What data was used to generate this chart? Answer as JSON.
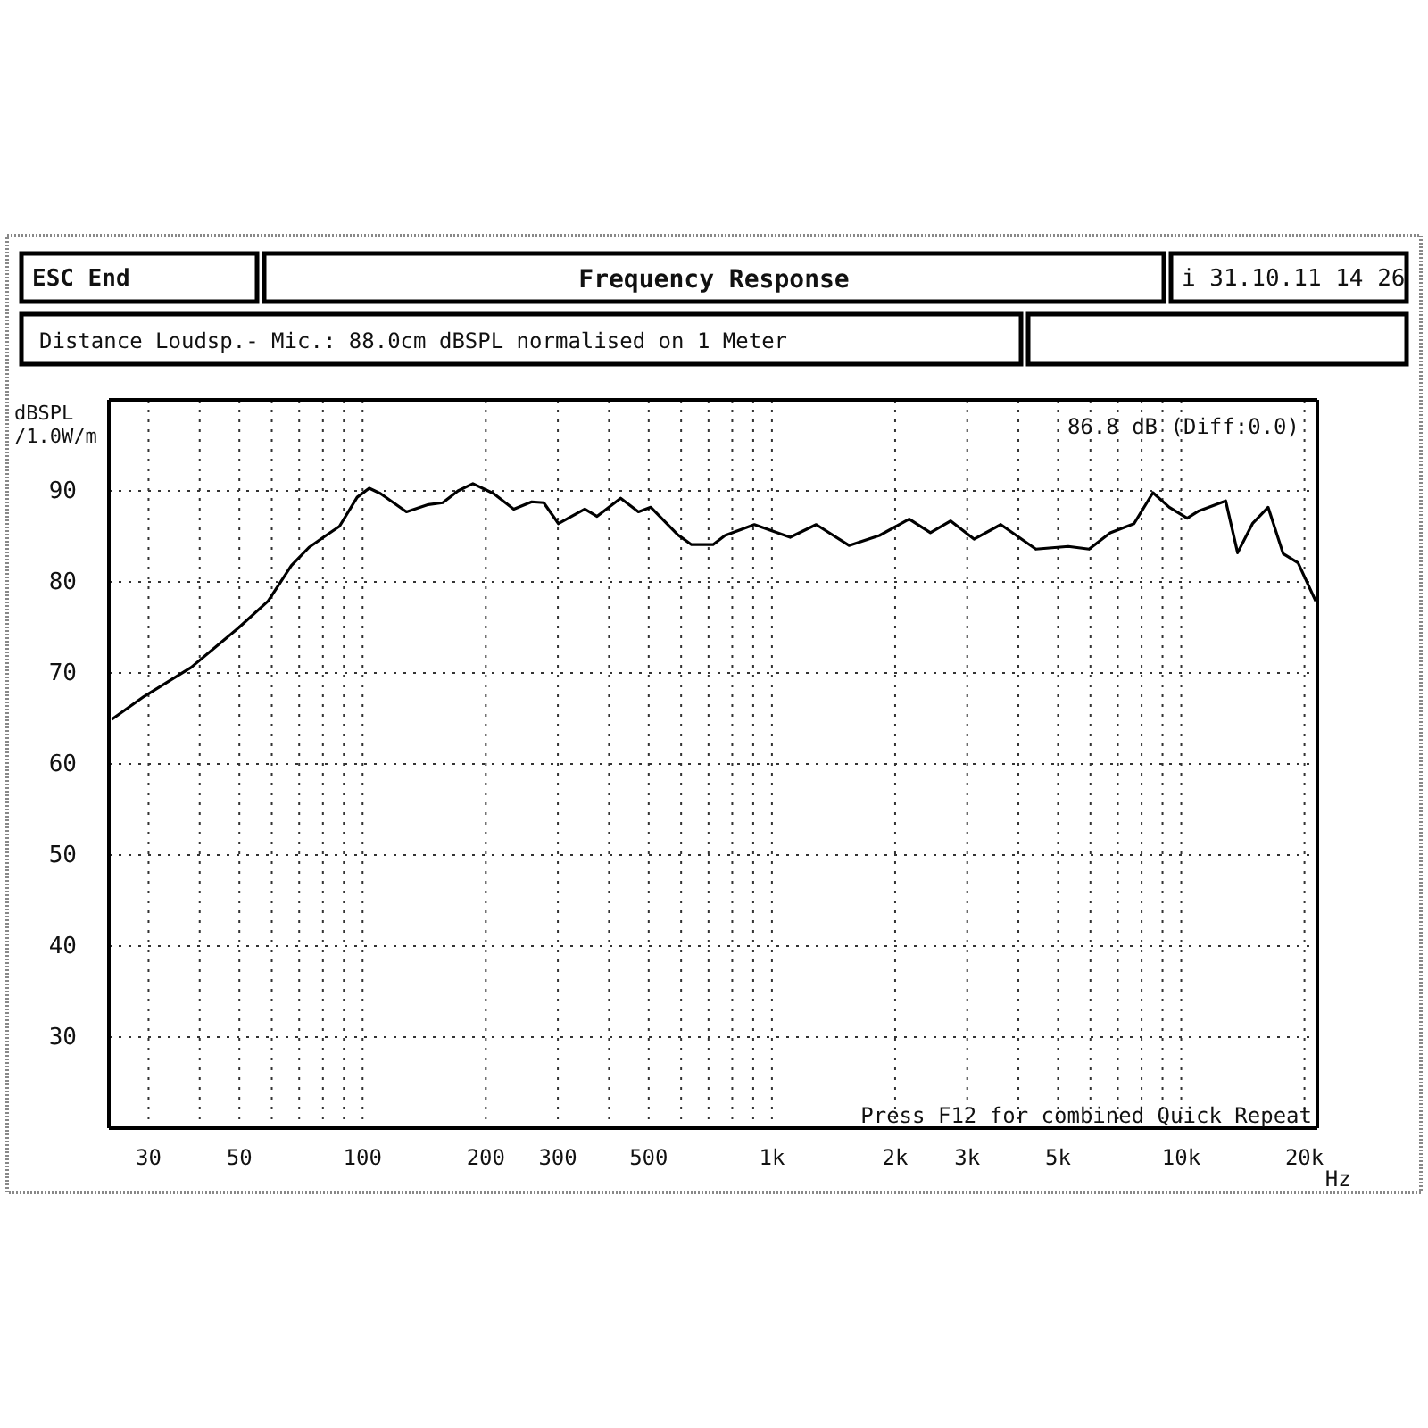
{
  "chart_data": {
    "type": "line",
    "title": "Frequency Response",
    "subtitle": "Distance Loudsp.- Mic.: 88.0cm dBSPL normalised on 1 Meter",
    "ylabel": "dBSPL\n/1.0W/m",
    "annotations": [
      "ESC End",
      "i 31.10.11 14 26",
      "86.8 dB (Diff:0.0)",
      "Press F12 for combined Quick Repeat"
    ],
    "log": "x",
    "grid": true,
    "color": "#000000",
    "xlim": [
      24,
      21500
    ],
    "ylim": [
      20,
      100
    ],
    "xticks": [
      30,
      {
        "value": 40,
        "label": null
      },
      50,
      {
        "value": 60,
        "label": null
      },
      {
        "value": 70,
        "label": null
      },
      {
        "value": 80,
        "label": null
      },
      {
        "value": 90,
        "label": null
      },
      100,
      200,
      300,
      {
        "value": 400,
        "label": null
      },
      500,
      {
        "value": 600,
        "label": null
      },
      {
        "value": 700,
        "label": null
      },
      {
        "value": 800,
        "label": null
      },
      {
        "value": 900,
        "label": null
      },
      {
        "value": 1000,
        "label": "1k"
      },
      {
        "value": 2000,
        "label": "2k"
      },
      {
        "value": 3000,
        "label": "3k"
      },
      {
        "value": 4000,
        "label": null
      },
      {
        "value": 5000,
        "label": "5k"
      },
      {
        "value": 6000,
        "label": null
      },
      {
        "value": 7000,
        "label": null
      },
      {
        "value": 8000,
        "label": null
      },
      {
        "value": 9000,
        "label": null
      },
      {
        "value": 10000,
        "label": "10k"
      },
      {
        "value": 20000,
        "label": "20k"
      }
    ],
    "xlabel": "Hz",
    "yticks": [
      30,
      40,
      50,
      60,
      70,
      80,
      90
    ],
    "x": [
      24.4,
      29.2,
      38.1,
      49.6,
      58.8,
      67,
      74,
      80.8,
      87.8,
      97,
      103.8,
      110.6,
      128,
      144.8,
      157,
      171,
      186,
      209,
      234,
      259,
      277,
      301,
      349,
      374,
      427,
      472,
      506,
      588,
      636,
      718,
      768,
      906,
      1108,
      1283,
      1543,
      1831,
      2165,
      2439,
      2734,
      3117,
      3623,
      4413,
      5297,
      5956,
      6707,
      7667,
      8528,
      9350,
      10340,
      11040,
      12840,
      13730,
      14930,
      16300,
      17740,
      19290,
      21300
    ],
    "values": [
      64.9,
      67.4,
      70.6,
      74.9,
      77.9,
      81.8,
      83.8,
      85,
      86.1,
      89.3,
      90.3,
      89.7,
      87.7,
      88.5,
      88.7,
      90,
      90.8,
      89.7,
      88,
      88.8,
      88.7,
      86.4,
      88,
      87.2,
      89.2,
      87.7,
      88.2,
      85.2,
      84.1,
      84.1,
      85.1,
      86.3,
      84.9,
      86.3,
      84,
      85.1,
      86.9,
      85.4,
      86.7,
      84.7,
      86.3,
      83.6,
      83.9,
      83.6,
      85.4,
      86.4,
      89.8,
      88.2,
      87,
      87.8,
      88.9,
      83.2,
      86.4,
      88.2,
      83.1,
      82.1,
      77.9
    ]
  }
}
